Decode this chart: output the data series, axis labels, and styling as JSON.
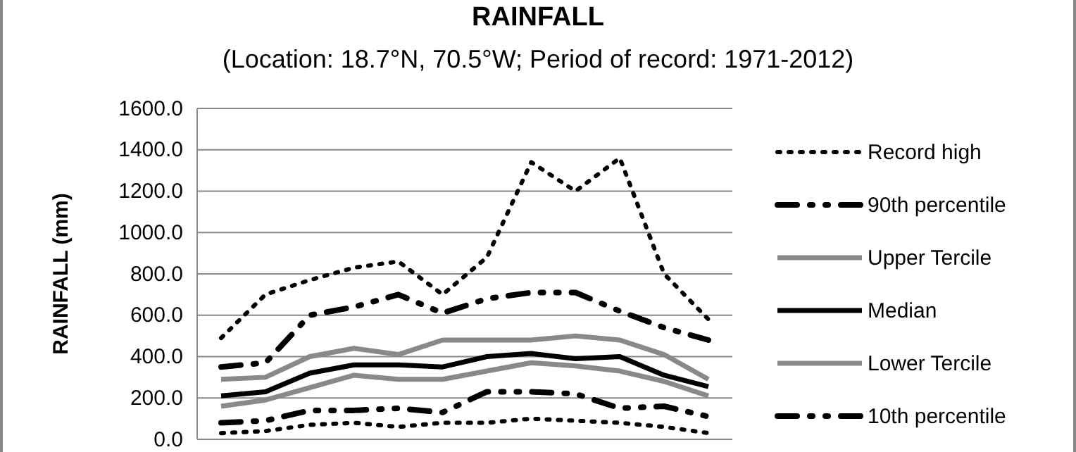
{
  "chart_data": {
    "type": "line",
    "title": "RAINFALL",
    "subtitle": "(Location: 18.7°N, 70.5°W; Period of record: 1971-2012)",
    "ylabel": "RAINFALL (mm)",
    "categories": [
      null,
      null,
      null,
      null,
      null,
      null,
      null,
      null,
      null,
      null,
      null,
      null
    ],
    "ylim": [
      0,
      1600
    ],
    "yticks": [
      {
        "value": 0,
        "label": "0.0"
      },
      {
        "value": 200,
        "label": "200.0"
      },
      {
        "value": 400,
        "label": "400.0"
      },
      {
        "value": 600,
        "label": "600.0"
      },
      {
        "value": 800,
        "label": "800.0"
      },
      {
        "value": 1000,
        "label": "1000.0"
      },
      {
        "value": 1200,
        "label": "1200.0"
      },
      {
        "value": 1400,
        "label": "1400.0"
      },
      {
        "value": 1600,
        "label": "1600.0"
      }
    ],
    "grid": "y",
    "legend": "right",
    "tick_labels": "y",
    "series": [
      {
        "name": "Record high",
        "color": "#000000",
        "line_style": "dotted",
        "values": [
          490,
          700,
          770,
          830,
          860,
          700,
          880,
          1340,
          1200,
          1360,
          800,
          580
        ]
      },
      {
        "name": "90th percentile",
        "color": "#000000",
        "line_style": "dashed",
        "values": [
          350,
          370,
          600,
          640,
          700,
          610,
          680,
          710,
          710,
          620,
          540,
          480
        ]
      },
      {
        "name": "Upper Tercile",
        "color": "#898989",
        "line_style": "solid",
        "values": [
          290,
          300,
          400,
          440,
          410,
          480,
          480,
          480,
          500,
          480,
          410,
          290
        ]
      },
      {
        "name": "Median",
        "color": "#000000",
        "line_style": "solid",
        "values": [
          210,
          230,
          320,
          360,
          360,
          350,
          400,
          415,
          390,
          400,
          310,
          255
        ]
      },
      {
        "name": "Lower Tercile",
        "color": "#898989",
        "line_style": "solid",
        "values": [
          160,
          190,
          250,
          310,
          290,
          290,
          330,
          370,
          355,
          330,
          280,
          210
        ]
      },
      {
        "name": "10th percentile",
        "color": "#000000",
        "line_style": "dashed",
        "values": [
          80,
          90,
          140,
          140,
          150,
          130,
          230,
          230,
          220,
          150,
          160,
          110
        ]
      },
      {
        "color": "#000000",
        "line_style": "dotted",
        "values": [
          30,
          40,
          70,
          80,
          60,
          80,
          80,
          100,
          90,
          80,
          60,
          30
        ]
      }
    ]
  }
}
